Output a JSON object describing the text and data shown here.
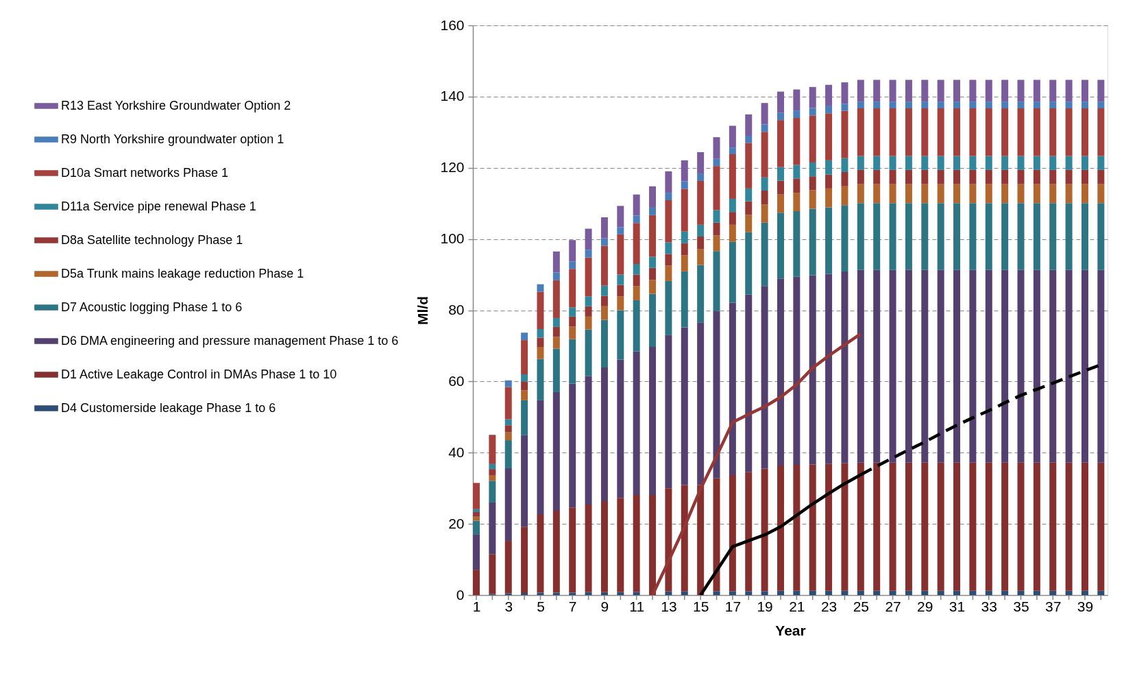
{
  "chart_data": {
    "type": "bar",
    "stacked": true,
    "xlabel": "Year",
    "ylabel": "Ml/d",
    "legend": "left",
    "grid": true,
    "x": [
      1,
      2,
      3,
      4,
      5,
      6,
      7,
      8,
      9,
      10,
      11,
      12,
      13,
      14,
      15,
      16,
      17,
      18,
      19,
      20,
      21,
      22,
      23,
      24,
      25,
      26,
      27,
      28,
      29,
      30,
      31,
      32,
      33,
      34,
      35,
      36,
      37,
      38,
      39,
      40
    ],
    "xlim": [
      1,
      40.2
    ],
    "xticks": [
      1,
      {
        "value": 2,
        "label": null
      },
      3,
      {
        "value": 4,
        "label": null
      },
      5,
      {
        "value": 6,
        "label": null
      },
      7,
      {
        "value": 8,
        "label": null
      },
      9,
      {
        "value": 10,
        "label": null
      },
      11,
      {
        "value": 12,
        "label": null
      },
      13,
      {
        "value": 14,
        "label": null
      },
      15,
      {
        "value": 16,
        "label": null
      },
      17,
      {
        "value": 18,
        "label": null
      },
      19,
      {
        "value": 20,
        "label": null
      },
      21,
      {
        "value": 22,
        "label": null
      },
      23,
      {
        "value": 24,
        "label": null
      },
      25,
      {
        "value": 26,
        "label": null
      },
      27,
      {
        "value": 28,
        "label": null
      },
      29,
      {
        "value": 30,
        "label": null
      },
      31,
      {
        "value": 32,
        "label": null
      },
      33,
      {
        "value": 34,
        "label": null
      },
      35,
      {
        "value": 36,
        "label": null
      },
      37,
      {
        "value": 38,
        "label": null
      },
      39,
      {
        "value": 40,
        "label": null
      }
    ],
    "ylim": [
      0,
      160
    ],
    "yticks": [
      0,
      20,
      40,
      60,
      80,
      100,
      120,
      140,
      160
    ],
    "series": [
      {
        "name": "D4 Customerside leakage Phase 1 to 6",
        "color": "#2c4d75",
        "values": [
          null,
          0.3,
          0.5,
          0.6,
          0.7,
          0.7,
          0.7,
          0.8,
          0.8,
          0.8,
          0.9,
          null,
          1.0,
          1.0,
          null,
          1.1,
          1.1,
          1.1,
          1.1,
          1.2,
          1.2,
          1.2,
          1.2,
          1.2,
          1.2,
          1.2,
          1.2,
          1.2,
          1.2,
          1.2,
          1.2,
          1.2,
          1.2,
          1.2,
          1.2,
          1.2,
          1.2,
          1.2,
          1.2,
          1.2
        ]
      },
      {
        "name": "D1 Active Leakage Control in DMAs Phase 1 to 10",
        "color": "#862f2f",
        "values": [
          7.1,
          11.2,
          14.7,
          18.5,
          22.0,
          23.0,
          23.9,
          24.6,
          25.6,
          26.5,
          27.2,
          28.1,
          29.0,
          29.9,
          30.9,
          31.7,
          32.6,
          33.4,
          34.4,
          35.2,
          35.4,
          35.5,
          35.6,
          35.8,
          36.0,
          36.0,
          36.0,
          36.0,
          36.0,
          36.0,
          36.0,
          36.0,
          36.0,
          36.0,
          36.0,
          36.0,
          36.0,
          36.0,
          36.0,
          36.0
        ]
      },
      {
        "name": "D6 DMA engineering and pressure management Phase 1 to 6",
        "color": "#54406e",
        "values": [
          10.0,
          14.5,
          20.4,
          25.8,
          32.0,
          33.3,
          34.8,
          36.1,
          37.5,
          38.8,
          40.3,
          41.6,
          43.0,
          44.3,
          45.7,
          47.0,
          48.4,
          49.9,
          51.3,
          52.5,
          52.8,
          53.1,
          53.4,
          53.9,
          54.1,
          54.1,
          54.1,
          54.1,
          54.1,
          54.1,
          54.1,
          54.1,
          54.1,
          54.1,
          54.1,
          54.1,
          54.1,
          54.1,
          54.1,
          54.1
        ]
      },
      {
        "name": "D7 Acoustic logging Phase 1 to 6",
        "color": "#2e7584",
        "values": [
          3.8,
          6.1,
          7.9,
          9.8,
          11.6,
          12.2,
          12.5,
          13.1,
          13.4,
          13.9,
          14.4,
          14.9,
          15.2,
          15.7,
          16.1,
          16.8,
          17.1,
          17.5,
          17.8,
          18.5,
          18.4,
          18.7,
          18.7,
          18.6,
          18.8,
          18.8,
          18.8,
          18.8,
          18.8,
          18.8,
          18.8,
          18.8,
          18.8,
          18.8,
          18.8,
          18.8,
          18.8,
          18.8,
          18.8,
          18.8
        ]
      },
      {
        "name": "D5a Trunk mains leakage reduction Phase 1",
        "color": "#b0662c",
        "values": [
          1.1,
          1.6,
          2.2,
          2.8,
          3.4,
          3.3,
          3.5,
          3.6,
          3.8,
          3.9,
          4.0,
          3.9,
          4.3,
          4.5,
          4.5,
          4.4,
          4.8,
          4.9,
          5.1,
          5.1,
          5.2,
          5.2,
          5.3,
          5.3,
          5.3,
          5.3,
          5.3,
          5.3,
          5.3,
          5.3,
          5.3,
          5.3,
          5.3,
          5.3,
          5.3,
          5.3,
          5.3,
          5.3,
          5.3,
          5.3
        ]
      },
      {
        "name": "D8a Satellite technology Phase 1",
        "color": "#953735",
        "values": [
          1.3,
          1.7,
          2.0,
          2.5,
          2.6,
          2.8,
          2.8,
          2.9,
          2.9,
          3.2,
          3.2,
          3.4,
          3.3,
          3.4,
          3.5,
          3.6,
          3.6,
          3.8,
          3.9,
          3.9,
          4.0,
          3.9,
          3.9,
          4.0,
          4.0,
          4.0,
          4.0,
          4.0,
          4.0,
          4.0,
          4.0,
          4.0,
          4.0,
          4.0,
          4.0,
          4.0,
          4.0,
          4.0,
          4.0,
          4.0
        ]
      },
      {
        "name": "D11a Service pipe renewal Phase 1",
        "color": "#31869b",
        "values": [
          0.8,
          1.4,
          1.7,
          2.0,
          2.4,
          2.5,
          2.6,
          2.8,
          2.9,
          2.9,
          3.0,
          3.1,
          3.3,
          3.3,
          3.3,
          3.5,
          3.7,
          3.6,
          3.7,
          3.8,
          3.8,
          3.9,
          4.0,
          3.9,
          3.9,
          3.9,
          3.9,
          3.9,
          3.9,
          3.9,
          3.9,
          3.9,
          3.9,
          3.9,
          3.9,
          3.9,
          3.9,
          3.9,
          3.9,
          3.9
        ]
      },
      {
        "name": "D10a Smart networks Phase 1",
        "color": "#a5403c",
        "values": [
          7.4,
          8.2,
          9.0,
          9.6,
          10.5,
          10.6,
          10.8,
          10.9,
          11.2,
          11.3,
          11.5,
          11.7,
          11.8,
          12.0,
          12.3,
          12.4,
          12.5,
          12.8,
          12.8,
          13.2,
          13.2,
          13.2,
          13.2,
          13.3,
          13.4,
          13.4,
          13.4,
          13.4,
          13.4,
          13.4,
          13.4,
          13.4,
          13.4,
          13.4,
          13.4,
          13.4,
          13.4,
          13.4,
          13.4,
          13.4
        ]
      },
      {
        "name": "R9 North Yorkshire groundwater option 1",
        "color": "#4a7ebb",
        "values": [
          null,
          null,
          1.9,
          2.1,
          2.1,
          2.2,
          2.1,
          2.2,
          2.1,
          2.0,
          2.1,
          2.1,
          2.1,
          2.1,
          2.1,
          2.0,
          1.9,
          2.0,
          2.1,
          2.0,
          2.1,
          2.1,
          2.0,
          2.0,
          1.9,
          1.9,
          1.9,
          1.9,
          1.9,
          1.9,
          1.9,
          1.9,
          1.9,
          1.9,
          1.9,
          1.9,
          1.9,
          1.9,
          1.9,
          1.9
        ]
      },
      {
        "name": "R13 East Yorkshire Groundwater Option 2",
        "color": "#7a5c9c",
        "values": [
          null,
          null,
          null,
          null,
          null,
          5.9,
          6.0,
          5.9,
          5.9,
          6.0,
          5.9,
          6.0,
          6.0,
          5.9,
          6.0,
          6.1,
          6.1,
          6.0,
          6.0,
          6.0,
          5.9,
          5.9,
          6.0,
          6.0,
          6.1,
          6.1,
          6.1,
          6.1,
          6.1,
          6.1,
          6.1,
          6.1,
          6.1,
          6.1,
          6.1,
          6.1,
          6.1,
          6.1,
          6.1,
          6.1
        ]
      },
      {
        "type": "line",
        "color": "#953735",
        "x": [
          12,
          13,
          14,
          15,
          16,
          17,
          18,
          19,
          20,
          21,
          22,
          23,
          24,
          25
        ],
        "values": [
          0,
          9.5,
          19.2,
          29.8,
          39,
          48.5,
          50.8,
          52.9,
          55.6,
          59.1,
          63.8,
          67.2,
          70.3,
          73.4
        ]
      },
      {
        "type": "line",
        "color": "#000000",
        "x": [
          15,
          16,
          17,
          18,
          19,
          20,
          21,
          22,
          23,
          24,
          25
        ],
        "values": [
          0,
          6.8,
          13.6,
          15.3,
          16.9,
          19.2,
          22.4,
          25.6,
          28.5,
          31.3,
          33.8
        ]
      },
      {
        "type": "line",
        "color": "#000000",
        "line_style": "dashed",
        "x": [
          25,
          26,
          27,
          28,
          29,
          30,
          31,
          32,
          33,
          34,
          35,
          36,
          37,
          38,
          39,
          40
        ],
        "values": [
          33.8,
          36.2,
          38.5,
          40.8,
          43.0,
          45.4,
          47.7,
          49.8,
          51.8,
          54.0,
          56.1,
          57.8,
          59.5,
          61.3,
          63.0,
          64.7
        ]
      }
    ]
  }
}
